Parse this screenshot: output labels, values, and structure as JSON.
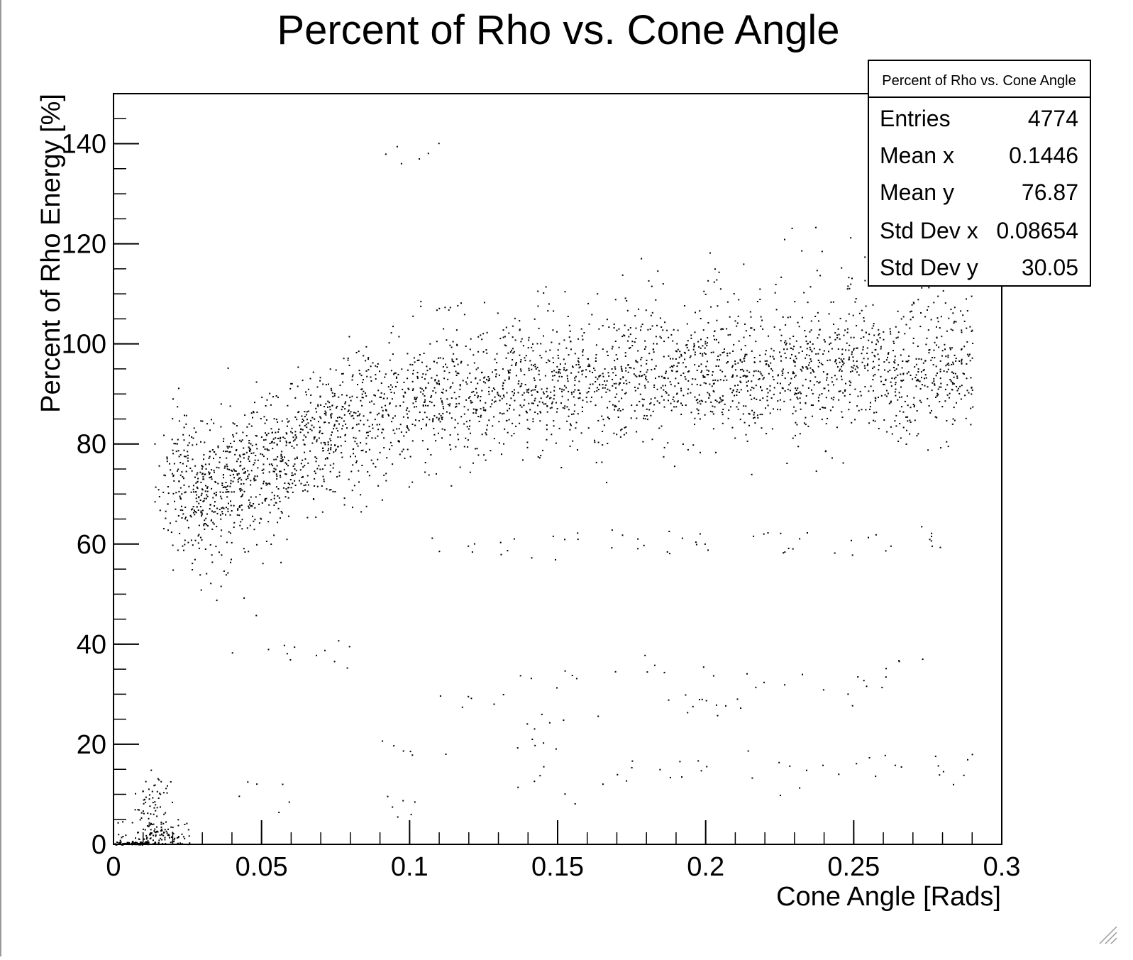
{
  "chart_data": {
    "type": "scatter",
    "title": "Percent of Rho vs. Cone Angle",
    "xlabel": "Cone Angle [Rads]",
    "ylabel": "Percent of Rho Energy [%]",
    "xlim": [
      0,
      0.3
    ],
    "ylim": [
      0,
      150
    ],
    "x_ticks": [
      "0",
      "0.05",
      "0.1",
      "0.15",
      "0.2",
      "0.25",
      "0.3"
    ],
    "x_tick_values": [
      0,
      0.05,
      0.1,
      0.15,
      0.2,
      0.25,
      0.3
    ],
    "y_ticks": [
      "0",
      "20",
      "40",
      "60",
      "80",
      "100",
      "120",
      "140"
    ],
    "y_tick_values": [
      0,
      20,
      40,
      60,
      80,
      100,
      120,
      140
    ],
    "grid": false,
    "legend": "none",
    "marker_color": "#000000",
    "stats_box": {
      "title": "Percent of Rho vs. Cone Angle",
      "placement": "top-right",
      "entries": [
        {
          "label": "Entries",
          "value": "4774"
        },
        {
          "label": "Mean x",
          "value": "0.1446"
        },
        {
          "label": "Mean y",
          "value": "76.87"
        },
        {
          "label": "Std Dev x",
          "value": "0.08654"
        },
        {
          "label": "Std Dev y",
          "value": "30.05"
        }
      ]
    },
    "series": [
      {
        "description": "main band rising from ~65% to ~95%",
        "x_range": [
          0.02,
          0.29
        ],
        "points": [
          [
            0.021,
            72
          ],
          [
            0.024,
            75
          ],
          [
            0.027,
            68
          ],
          [
            0.03,
            70
          ],
          [
            0.033,
            73
          ],
          [
            0.036,
            66
          ],
          [
            0.04,
            74
          ],
          [
            0.043,
            70
          ],
          [
            0.046,
            77
          ],
          [
            0.05,
            72
          ],
          [
            0.053,
            79
          ],
          [
            0.057,
            75
          ],
          [
            0.06,
            80
          ],
          [
            0.064,
            78
          ],
          [
            0.068,
            83
          ],
          [
            0.072,
            81
          ],
          [
            0.076,
            85
          ],
          [
            0.08,
            83
          ],
          [
            0.085,
            87
          ],
          [
            0.09,
            86
          ],
          [
            0.095,
            88
          ],
          [
            0.1,
            87
          ],
          [
            0.105,
            90
          ],
          [
            0.11,
            88
          ],
          [
            0.115,
            91
          ],
          [
            0.12,
            89
          ],
          [
            0.125,
            92
          ],
          [
            0.13,
            90
          ],
          [
            0.135,
            92
          ],
          [
            0.14,
            91
          ],
          [
            0.145,
            93
          ],
          [
            0.15,
            92
          ],
          [
            0.155,
            94
          ],
          [
            0.16,
            93
          ],
          [
            0.165,
            94
          ],
          [
            0.17,
            92
          ],
          [
            0.175,
            95
          ],
          [
            0.18,
            93
          ],
          [
            0.185,
            94
          ],
          [
            0.19,
            95
          ],
          [
            0.195,
            94
          ],
          [
            0.2,
            95
          ],
          [
            0.205,
            93
          ],
          [
            0.21,
            96
          ],
          [
            0.215,
            94
          ],
          [
            0.22,
            95
          ],
          [
            0.225,
            96
          ],
          [
            0.23,
            94
          ],
          [
            0.235,
            95
          ],
          [
            0.24,
            96
          ],
          [
            0.245,
            94
          ],
          [
            0.25,
            95
          ],
          [
            0.255,
            96
          ],
          [
            0.26,
            94
          ],
          [
            0.265,
            95
          ],
          [
            0.27,
            96
          ],
          [
            0.275,
            94
          ],
          [
            0.28,
            95
          ],
          [
            0.285,
            96
          ],
          [
            0.29,
            95
          ]
        ]
      },
      {
        "description": "accumulation near origin",
        "points": [
          [
            0.0,
            0
          ],
          [
            0.005,
            0
          ],
          [
            0.01,
            0.5
          ],
          [
            0.012,
            1
          ],
          [
            0.014,
            2
          ],
          [
            0.016,
            3
          ],
          [
            0.018,
            1
          ],
          [
            0.02,
            0.5
          ],
          [
            0.012,
            8
          ],
          [
            0.014,
            10
          ]
        ]
      },
      {
        "description": "upper sparse band near 110%",
        "points": [
          [
            0.12,
            108
          ],
          [
            0.15,
            110
          ],
          [
            0.18,
            112
          ],
          [
            0.2,
            111
          ],
          [
            0.22,
            113
          ],
          [
            0.24,
            112
          ],
          [
            0.26,
            114
          ],
          [
            0.28,
            110
          ],
          [
            0.105,
            137
          ],
          [
            0.235,
            122
          ]
        ]
      },
      {
        "description": "sparse 60% band",
        "points": [
          [
            0.12,
            60
          ],
          [
            0.14,
            60
          ],
          [
            0.16,
            60
          ],
          [
            0.18,
            60
          ],
          [
            0.2,
            61
          ],
          [
            0.22,
            62
          ],
          [
            0.24,
            60
          ],
          [
            0.26,
            61
          ],
          [
            0.28,
            61
          ]
        ]
      },
      {
        "description": "sparse low bands",
        "points": [
          [
            0.05,
            40
          ],
          [
            0.08,
            38
          ],
          [
            0.12,
            30
          ],
          [
            0.15,
            33
          ],
          [
            0.18,
            35
          ],
          [
            0.2,
            30
          ],
          [
            0.22,
            32
          ],
          [
            0.25,
            31
          ],
          [
            0.27,
            35
          ],
          [
            0.15,
            25
          ],
          [
            0.2,
            27
          ],
          [
            0.1,
            20
          ],
          [
            0.14,
            19
          ],
          [
            0.18,
            15
          ],
          [
            0.2,
            16
          ],
          [
            0.23,
            14
          ],
          [
            0.25,
            15
          ],
          [
            0.27,
            16
          ],
          [
            0.29,
            15
          ],
          [
            0.05,
            10
          ],
          [
            0.1,
            8
          ],
          [
            0.15,
            12
          ]
        ]
      }
    ]
  }
}
